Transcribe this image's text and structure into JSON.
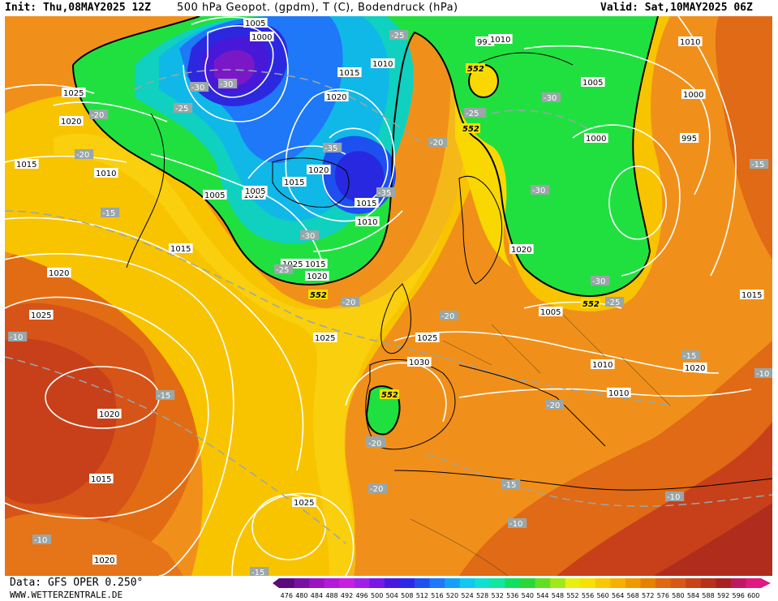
{
  "header": {
    "init": "Init: Thu,08MAY2025 12Z",
    "title": "500 hPa Geopot. (gpdm), T (C), Bodendruck (hPa)",
    "valid": "Valid: Sat,10MAY2025 06Z"
  },
  "footer": {
    "data_source": "Data: GFS OPER 0.250°",
    "website": "WWW.WETTERZENTRALE.DE"
  },
  "colorbar": {
    "labels": [
      "476",
      "480",
      "484",
      "488",
      "492",
      "496",
      "500",
      "504",
      "508",
      "512",
      "516",
      "520",
      "524",
      "528",
      "532",
      "536",
      "540",
      "544",
      "548",
      "552",
      "556",
      "560",
      "564",
      "568",
      "572",
      "576",
      "580",
      "584",
      "588",
      "592",
      "596",
      "600"
    ],
    "colors": [
      "#5a0a7a",
      "#7a10a0",
      "#9a14c0",
      "#b418d8",
      "#c81ee0",
      "#a020e8",
      "#7818e8",
      "#4818e0",
      "#2c28e8",
      "#1e50f0",
      "#1e78f8",
      "#14a0f8",
      "#10c8f0",
      "#10e0d0",
      "#10e8a0",
      "#10e060",
      "#28d838",
      "#60e020",
      "#a0e818",
      "#e8f010",
      "#f8e000",
      "#f8c800",
      "#f8b000",
      "#f09800",
      "#e88000",
      "#e06810",
      "#d85818",
      "#c84418",
      "#b83018",
      "#a82020",
      "#c01860",
      "#e01880"
    ]
  },
  "map": {
    "colors": {
      "ocean_orange": "#f08c1a",
      "deep_orange": "#e06a14",
      "red": "#c03a1c",
      "yellow": "#f8d800",
      "green": "#22e040",
      "cyan": "#10c0e8",
      "blue": "#2838e0",
      "purple": "#7a18c8"
    },
    "isobar_labels": [
      "1005",
      "1000",
      "1010",
      "1015",
      "1020",
      "1025",
      "1020",
      "1015",
      "1010",
      "1005",
      "1010",
      "1015",
      "1020",
      "1025",
      "1020",
      "1015",
      "1025",
      "1020",
      "1025",
      "1030",
      "1025",
      "1020",
      "995",
      "1005",
      "1010",
      "1000",
      "995",
      "1000",
      "1005",
      "1010",
      "1010",
      "1015",
      "1020",
      "1015",
      "1020",
      "1015",
      "1010",
      "1015",
      "1020",
      "1025",
      "1005",
      "1010",
      "1015",
      "1020",
      "1015"
    ],
    "temp_labels": [
      "-25",
      "-30",
      "-30",
      "-25",
      "-20",
      "-20",
      "-15",
      "-30",
      "-20",
      "-25",
      "-30",
      "-35",
      "-35",
      "-25",
      "-20",
      "-20",
      "-25",
      "-30",
      "-30",
      "-25",
      "-20",
      "-15",
      "-10",
      "-20",
      "-20",
      "-15",
      "-10",
      "-10",
      "-15",
      "-10",
      "-10",
      "-15",
      "-15",
      "-20",
      "-15"
    ],
    "height_552_label": "552"
  }
}
